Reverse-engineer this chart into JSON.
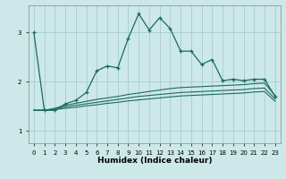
{
  "xlabel": "Humidex (Indice chaleur)",
  "background_color": "#cce8e8",
  "grid_color": "#aacccc",
  "line_color": "#1a6b5a",
  "x_ticks": [
    0,
    1,
    2,
    3,
    4,
    5,
    6,
    7,
    8,
    9,
    10,
    11,
    12,
    13,
    14,
    15,
    16,
    17,
    18,
    19,
    20,
    21,
    22,
    23
  ],
  "ylim": [
    0.75,
    3.55
  ],
  "yticks": [
    1,
    2,
    3
  ],
  "curve1": [
    3.0,
    1.42,
    1.42,
    1.55,
    1.62,
    1.78,
    2.22,
    2.32,
    2.28,
    2.88,
    3.38,
    3.05,
    3.3,
    3.08,
    2.62,
    2.62,
    2.35,
    2.45,
    2.02,
    2.05,
    2.02,
    2.05,
    2.05,
    1.7
  ],
  "curve2": [
    1.42,
    1.42,
    1.46,
    1.52,
    1.56,
    1.6,
    1.64,
    1.67,
    1.7,
    1.74,
    1.77,
    1.8,
    1.83,
    1.86,
    1.88,
    1.89,
    1.9,
    1.91,
    1.92,
    1.93,
    1.94,
    1.96,
    1.97,
    1.72
  ],
  "curve3": [
    1.42,
    1.42,
    1.44,
    1.49,
    1.52,
    1.55,
    1.58,
    1.61,
    1.64,
    1.67,
    1.7,
    1.72,
    1.74,
    1.76,
    1.78,
    1.79,
    1.8,
    1.81,
    1.82,
    1.83,
    1.84,
    1.86,
    1.87,
    1.65
  ],
  "curve4": [
    1.42,
    1.42,
    1.43,
    1.46,
    1.48,
    1.51,
    1.53,
    1.56,
    1.58,
    1.61,
    1.63,
    1.65,
    1.67,
    1.69,
    1.71,
    1.72,
    1.73,
    1.74,
    1.75,
    1.76,
    1.77,
    1.79,
    1.8,
    1.6
  ]
}
